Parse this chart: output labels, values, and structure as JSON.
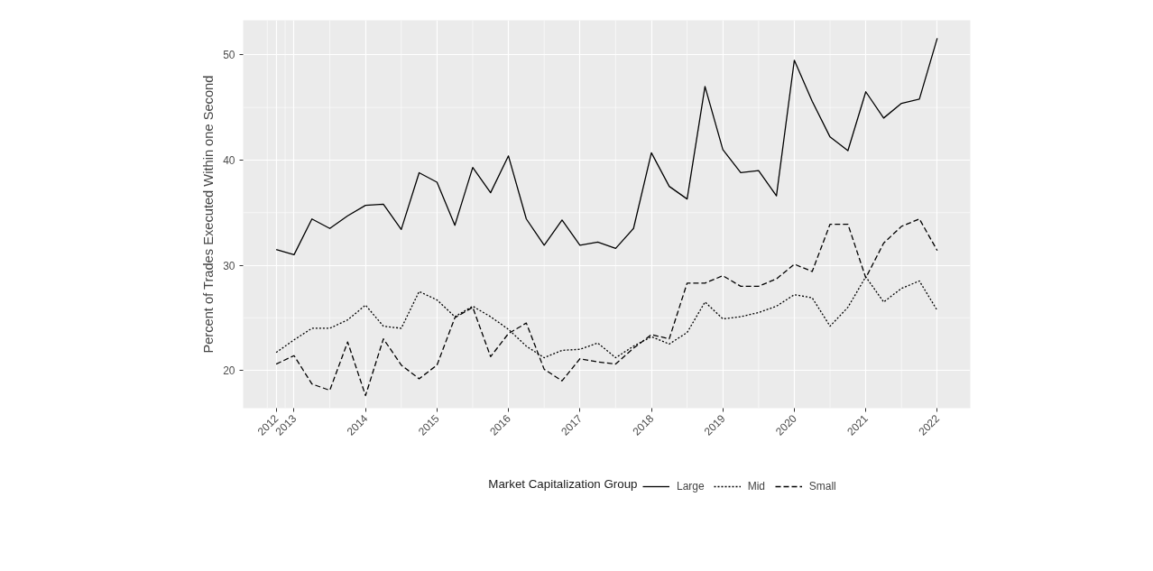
{
  "chart_data": {
    "type": "line",
    "ylabel": "Percent of Trades Executed Within one Second",
    "legend_title": "Market Capitalization Group",
    "legend": "bottom",
    "grid": true,
    "categories": [
      "2012",
      "2013",
      null,
      null,
      null,
      "2014",
      null,
      null,
      null,
      "2015",
      null,
      null,
      null,
      "2016",
      null,
      null,
      null,
      "2017",
      null,
      null,
      null,
      "2018",
      null,
      null,
      null,
      "2019",
      null,
      null,
      null,
      "2020",
      null,
      null,
      null,
      "2021",
      null,
      null,
      null,
      "2022"
    ],
    "ylim": [
      16.4,
      53.3
    ],
    "yticks": [
      20,
      30,
      40,
      50
    ],
    "series": [
      {
        "name": "Large",
        "color": "#000000",
        "line_style": "solid",
        "values": [
          31.5,
          31.0,
          34.4,
          33.5,
          34.7,
          35.7,
          35.8,
          33.4,
          38.8,
          37.9,
          33.8,
          39.3,
          36.9,
          40.4,
          34.4,
          31.9,
          34.3,
          31.9,
          32.2,
          31.6,
          33.5,
          40.7,
          37.5,
          36.3,
          47.0,
          41.0,
          38.8,
          39.0,
          36.6,
          49.5,
          45.6,
          42.2,
          40.9,
          46.5,
          44.0,
          45.4,
          45.8,
          51.6
        ]
      },
      {
        "name": "Mid",
        "color": "#000000",
        "line_style": "dotted",
        "values": [
          21.7,
          22.9,
          24.0,
          24.0,
          24.8,
          26.2,
          24.2,
          24.0,
          27.5,
          26.7,
          25.1,
          26.1,
          25.1,
          23.9,
          22.3,
          21.2,
          21.9,
          22.0,
          22.6,
          21.2,
          22.3,
          23.2,
          22.5,
          23.6,
          26.5,
          24.9,
          25.1,
          25.5,
          26.1,
          27.2,
          26.9,
          24.2,
          26.0,
          28.9,
          26.5,
          27.8,
          28.5,
          25.7
        ]
      },
      {
        "name": "Small",
        "color": "#000000",
        "line_style": "dashed",
        "values": [
          20.6,
          21.4,
          18.7,
          18.1,
          22.7,
          17.6,
          23.0,
          20.5,
          19.2,
          20.5,
          25.0,
          26.0,
          21.3,
          23.5,
          24.5,
          20.1,
          19.0,
          21.1,
          20.8,
          20.6,
          22.1,
          23.4,
          23.0,
          28.3,
          28.3,
          29.0,
          28.0,
          28.0,
          28.7,
          30.1,
          29.4,
          33.9,
          33.9,
          28.8,
          32.1,
          33.7,
          34.4,
          31.4
        ]
      }
    ]
  }
}
